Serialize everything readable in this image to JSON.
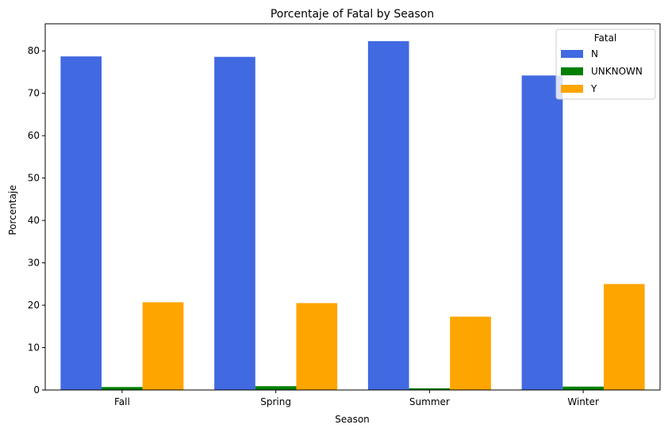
{
  "chart_data": {
    "type": "bar",
    "title": "Porcentaje of Fatal by Season",
    "xlabel": "Season",
    "ylabel": "Porcentaje",
    "categories": [
      "Fall",
      "Spring",
      "Summer",
      "Winter"
    ],
    "series": [
      {
        "name": "N",
        "color": "#4169e1",
        "values": [
          78.7,
          78.6,
          82.3,
          74.2
        ]
      },
      {
        "name": "UNKNOWN",
        "color": "#008000",
        "values": [
          0.7,
          0.9,
          0.4,
          0.8
        ]
      },
      {
        "name": "Y",
        "color": "#ffa500",
        "values": [
          20.7,
          20.5,
          17.3,
          25.0
        ]
      }
    ],
    "ylim": [
      0,
      86.4
    ],
    "yticks": [
      0,
      10,
      20,
      30,
      40,
      50,
      60,
      70,
      80
    ],
    "grid": false,
    "legend": {
      "title": "Fatal",
      "placement": "top-right"
    }
  }
}
